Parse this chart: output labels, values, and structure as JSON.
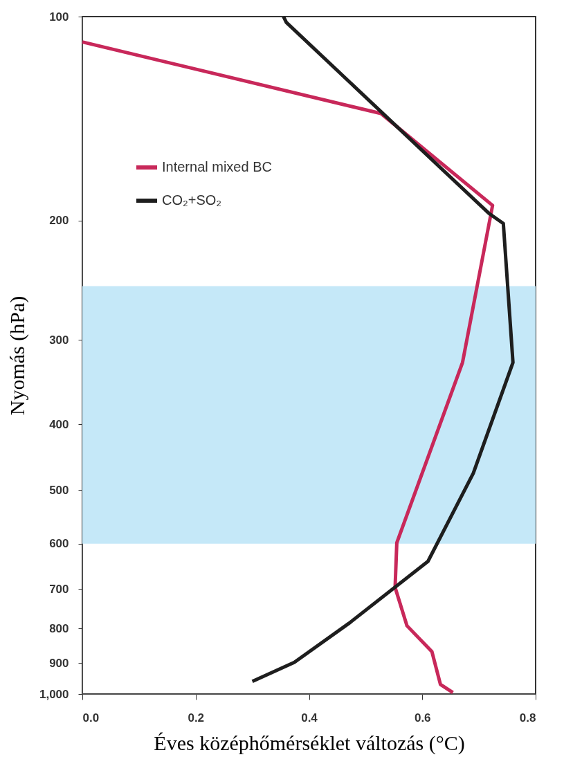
{
  "chart_data": {
    "type": "line",
    "xlabel": "Éves középhőmérséklet változás (°C)",
    "ylabel": "Nyomás (hPa)",
    "xlim": [
      0,
      0.8
    ],
    "xticks": [
      {
        "value": 0,
        "label": "0.0"
      },
      0.2,
      0.4,
      0.6,
      0.8
    ],
    "ylim": [
      1000,
      100
    ],
    "yticks": [
      100,
      200,
      300,
      400,
      500,
      600,
      700,
      800,
      900,
      {
        "value": 1000,
        "label": "1,000"
      }
    ],
    "log": "y",
    "grid": false,
    "legend": "top left",
    "line_style": "solid",
    "marker": "none",
    "bands": [
      {
        "axis": "y",
        "from": 250,
        "to": 600,
        "color": "#c5e8f8"
      }
    ],
    "series": [
      {
        "name": "Internal mixed BC",
        "color": "#c8285a",
        "x": [
          0,
          0.527,
          0.724,
          0.671,
          0.555,
          0.552,
          0.573,
          0.617,
          0.632,
          0.654
        ],
        "values": [
          109,
          139,
          190,
          324,
          598,
          696,
          793,
          866,
          968,
          995
        ]
      },
      {
        "name": "CO₂+SO₂",
        "color": "#1e1e1e",
        "x": [
          0.355,
          0.36,
          0.717,
          0.743,
          0.76,
          0.69,
          0.61,
          0.47,
          0.374,
          0.3
        ],
        "values": [
          100,
          102,
          195,
          202,
          324,
          472,
          637,
          787,
          898,
          958
        ]
      }
    ]
  }
}
